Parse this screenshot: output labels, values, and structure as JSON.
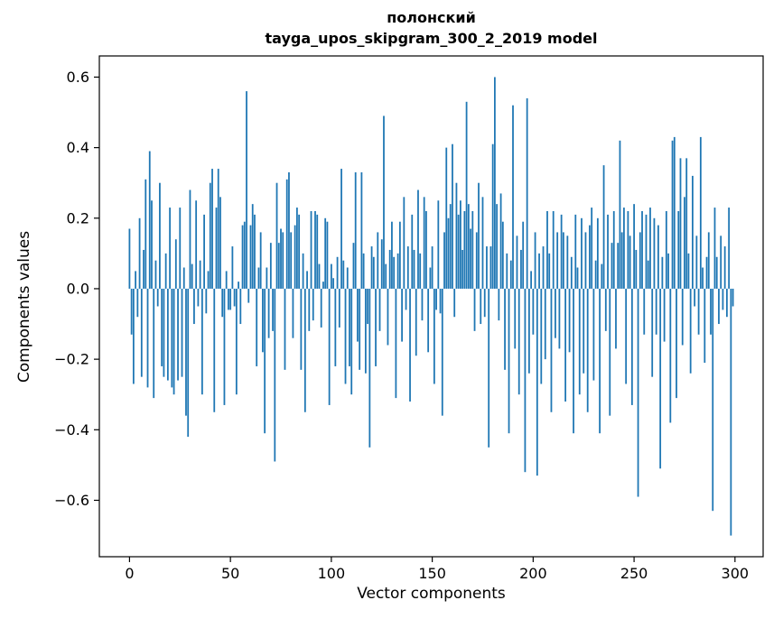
{
  "chart_data": {
    "type": "bar",
    "title_line1": "полонский",
    "title_line2": "tayga_upos_skipgram_300_2_2019 model",
    "xlabel": "Vector components",
    "ylabel": "Components values",
    "bar_color": "#1f77b4",
    "axes_color": "#000000",
    "background_color": "#ffffff",
    "xlim": [
      -14.95,
      313.95
    ],
    "ylim": [
      -0.76,
      0.66
    ],
    "xticks": [
      0,
      50,
      100,
      150,
      200,
      250,
      300
    ],
    "xticklabels": [
      "0",
      "50",
      "100",
      "150",
      "200",
      "250",
      "300"
    ],
    "yticks": [
      -0.6,
      -0.4,
      -0.2,
      0.0,
      0.2,
      0.4,
      0.6
    ],
    "yticklabels": [
      "−0.6",
      "−0.4",
      "−0.2",
      "0.0",
      "0.2",
      "0.4",
      "0.6"
    ],
    "grid": false,
    "legend": false,
    "values": [
      0.17,
      -0.13,
      -0.27,
      0.05,
      -0.08,
      0.2,
      -0.25,
      0.11,
      0.31,
      -0.28,
      0.39,
      0.25,
      -0.31,
      0.08,
      -0.05,
      0.3,
      -0.22,
      -0.25,
      0.1,
      -0.26,
      0.23,
      -0.28,
      -0.3,
      0.14,
      -0.26,
      0.23,
      -0.25,
      0.06,
      -0.36,
      -0.42,
      0.28,
      0.07,
      -0.1,
      0.25,
      -0.05,
      0.08,
      -0.3,
      0.21,
      -0.07,
      0.05,
      0.3,
      0.34,
      -0.35,
      0.23,
      0.34,
      0.26,
      -0.08,
      -0.33,
      0.05,
      -0.06,
      -0.06,
      0.12,
      -0.05,
      -0.3,
      0.02,
      -0.1,
      0.18,
      0.19,
      0.56,
      -0.04,
      0.18,
      0.24,
      0.21,
      -0.22,
      0.06,
      0.16,
      -0.18,
      -0.41,
      0.06,
      -0.14,
      0.13,
      -0.12,
      -0.49,
      0.3,
      0.13,
      0.17,
      0.16,
      -0.23,
      0.31,
      0.33,
      0.16,
      -0.14,
      0.18,
      0.23,
      0.21,
      -0.23,
      0.1,
      -0.35,
      0.05,
      -0.12,
      0.22,
      -0.09,
      0.22,
      0.21,
      0.07,
      -0.11,
      0.02,
      0.2,
      0.19,
      -0.33,
      0.07,
      0.03,
      -0.22,
      0.09,
      -0.11,
      0.34,
      0.08,
      -0.27,
      0.06,
      -0.22,
      -0.3,
      0.13,
      0.33,
      -0.15,
      -0.23,
      0.33,
      0.1,
      -0.24,
      -0.1,
      -0.45,
      0.12,
      0.09,
      -0.22,
      0.16,
      -0.12,
      0.14,
      0.49,
      0.07,
      -0.16,
      0.11,
      0.19,
      0.09,
      -0.31,
      0.1,
      0.19,
      -0.15,
      0.26,
      -0.06,
      0.12,
      -0.32,
      0.21,
      0.11,
      -0.19,
      0.28,
      0.1,
      -0.09,
      0.26,
      0.22,
      -0.18,
      0.06,
      0.12,
      -0.27,
      -0.06,
      0.25,
      -0.07,
      -0.36,
      0.16,
      0.4,
      0.2,
      0.24,
      0.41,
      -0.08,
      0.3,
      0.21,
      0.25,
      0.11,
      0.22,
      0.53,
      0.24,
      0.17,
      0.22,
      -0.12,
      0.16,
      0.3,
      -0.1,
      0.26,
      -0.08,
      0.12,
      -0.45,
      0.12,
      0.41,
      0.6,
      0.24,
      -0.09,
      0.27,
      0.19,
      -0.23,
      0.1,
      -0.41,
      0.08,
      0.52,
      -0.17,
      0.15,
      -0.3,
      0.11,
      0.19,
      -0.52,
      0.54,
      -0.24,
      0.05,
      -0.13,
      0.16,
      -0.53,
      0.1,
      -0.27,
      0.12,
      -0.2,
      0.22,
      0.1,
      -0.35,
      0.22,
      -0.14,
      0.16,
      -0.17,
      0.21,
      0.16,
      -0.32,
      0.15,
      -0.18,
      0.09,
      -0.41,
      0.21,
      0.06,
      -0.3,
      0.2,
      -0.24,
      0.16,
      -0.35,
      0.18,
      0.23,
      -0.26,
      0.08,
      0.2,
      -0.41,
      0.07,
      0.35,
      -0.12,
      0.21,
      -0.36,
      0.13,
      0.22,
      -0.17,
      0.13,
      0.42,
      0.16,
      0.23,
      -0.27,
      0.22,
      0.15,
      -0.33,
      0.24,
      0.11,
      -0.59,
      0.16,
      0.22,
      -0.13,
      0.21,
      0.08,
      0.23,
      -0.25,
      0.2,
      -0.13,
      0.18,
      -0.51,
      0.09,
      -0.15,
      0.22,
      0.1,
      -0.38,
      0.42,
      0.43,
      -0.31,
      0.22,
      0.37,
      -0.16,
      0.26,
      0.37,
      0.1,
      -0.24,
      0.32,
      -0.05,
      0.15,
      -0.13,
      0.43,
      0.06,
      -0.21,
      0.09,
      0.16,
      -0.13,
      -0.63,
      0.23,
      0.09,
      -0.1,
      0.15,
      -0.06,
      0.12,
      -0.08,
      0.23,
      -0.7,
      -0.05
    ]
  }
}
